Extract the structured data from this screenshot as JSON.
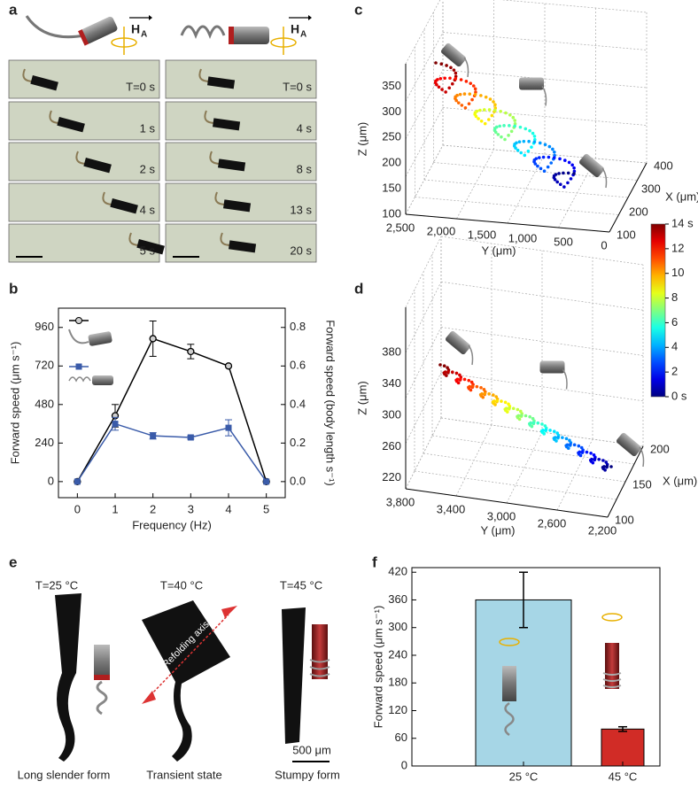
{
  "panel_labels": [
    "a",
    "b",
    "c",
    "d",
    "e",
    "f"
  ],
  "panel_a": {
    "field_symbol": "H",
    "field_subscript": "A",
    "left_times": [
      "T=0 s",
      "1 s",
      "2 s",
      "4 s",
      "5 s"
    ],
    "right_times": [
      "T=0 s",
      "4 s",
      "8 s",
      "13 s",
      "20 s"
    ]
  },
  "chart_data": [
    {
      "type": "line",
      "xlabel": "Frequency (Hz)",
      "ylabel": "Forward speed (μm s⁻¹)",
      "y2label": "Forward speed (body length s⁻¹)",
      "x": [
        0,
        1,
        2,
        3,
        4,
        5
      ],
      "xlim": [
        -0.5,
        5.5
      ],
      "xticks": [
        0,
        1,
        2,
        3,
        4,
        5
      ],
      "ylim": [
        -100,
        1080
      ],
      "yticks": [
        0,
        240,
        480,
        720,
        960
      ],
      "y2lim": [
        -0.08333,
        0.9
      ],
      "y2ticks": [
        {
          "value": 0,
          "label": "0.0"
        },
        0.2,
        0.4,
        0.6,
        0.8
      ],
      "series": [
        {
          "color": "#000000",
          "marker": "circle",
          "values": [
            0,
            410,
            890,
            810,
            720,
            0
          ],
          "errors": [
            0,
            70,
            110,
            45,
            0,
            0
          ]
        },
        {
          "color": "#3a5ba9",
          "marker": "square",
          "values": [
            0,
            360,
            285,
            275,
            335,
            0
          ],
          "errors": [
            0,
            40,
            20,
            10,
            50,
            0
          ]
        }
      ]
    },
    {
      "type": "bar",
      "ylabel": "Forward speed (μm s⁻¹)",
      "categories": [
        "25 °C",
        "45 °C"
      ],
      "values": [
        360,
        80
      ],
      "errors": [
        60,
        5
      ],
      "colors": [
        "#a6d6e6",
        "#d12c26"
      ],
      "ylim": [
        0,
        430
      ],
      "yticks": [
        0,
        60,
        120,
        180,
        240,
        300,
        360,
        420
      ]
    }
  ],
  "panel_c": {
    "zlabel": "Z (μm)",
    "ylabel": "Y (μm)",
    "xlabel": "X (μm)",
    "zticks": [
      100,
      150,
      200,
      250,
      300,
      350
    ],
    "yticks": [
      {
        "value": 2500,
        "label": "2,500"
      },
      {
        "value": 2000,
        "label": "2,000"
      },
      {
        "value": 1500,
        "label": "1,500"
      },
      {
        "value": 1000,
        "label": "1,000"
      },
      500,
      0
    ],
    "xticks": [
      100,
      200,
      300,
      400
    ]
  },
  "panel_d": {
    "zlabel": "Z (μm)",
    "ylabel": "Y (μm)",
    "xlabel": "X (μm)",
    "zticks": [
      220,
      260,
      300,
      340,
      380
    ],
    "yticks": [
      {
        "value": 3800,
        "label": "3,800"
      },
      {
        "value": 3400,
        "label": "3,400"
      },
      {
        "value": 3000,
        "label": "3,000"
      },
      {
        "value": 2600,
        "label": "2,600"
      },
      {
        "value": 2200,
        "label": "2,200"
      }
    ],
    "xticks": [
      100,
      150,
      200
    ]
  },
  "colorbar": {
    "lim": [
      0,
      14
    ],
    "ticks": [
      {
        "value": 0,
        "label": "0 s"
      },
      2,
      4,
      6,
      8,
      10,
      12,
      {
        "value": 14,
        "label": "14 s"
      }
    ]
  },
  "panel_e": {
    "temperatures": [
      "T=25 °C",
      "T=40 °C",
      "T=45 °C"
    ],
    "axis_note": "Refolding axis",
    "scale": "500 μm",
    "forms": [
      "Long slender form",
      "Transient state",
      "Stumpy form"
    ]
  }
}
